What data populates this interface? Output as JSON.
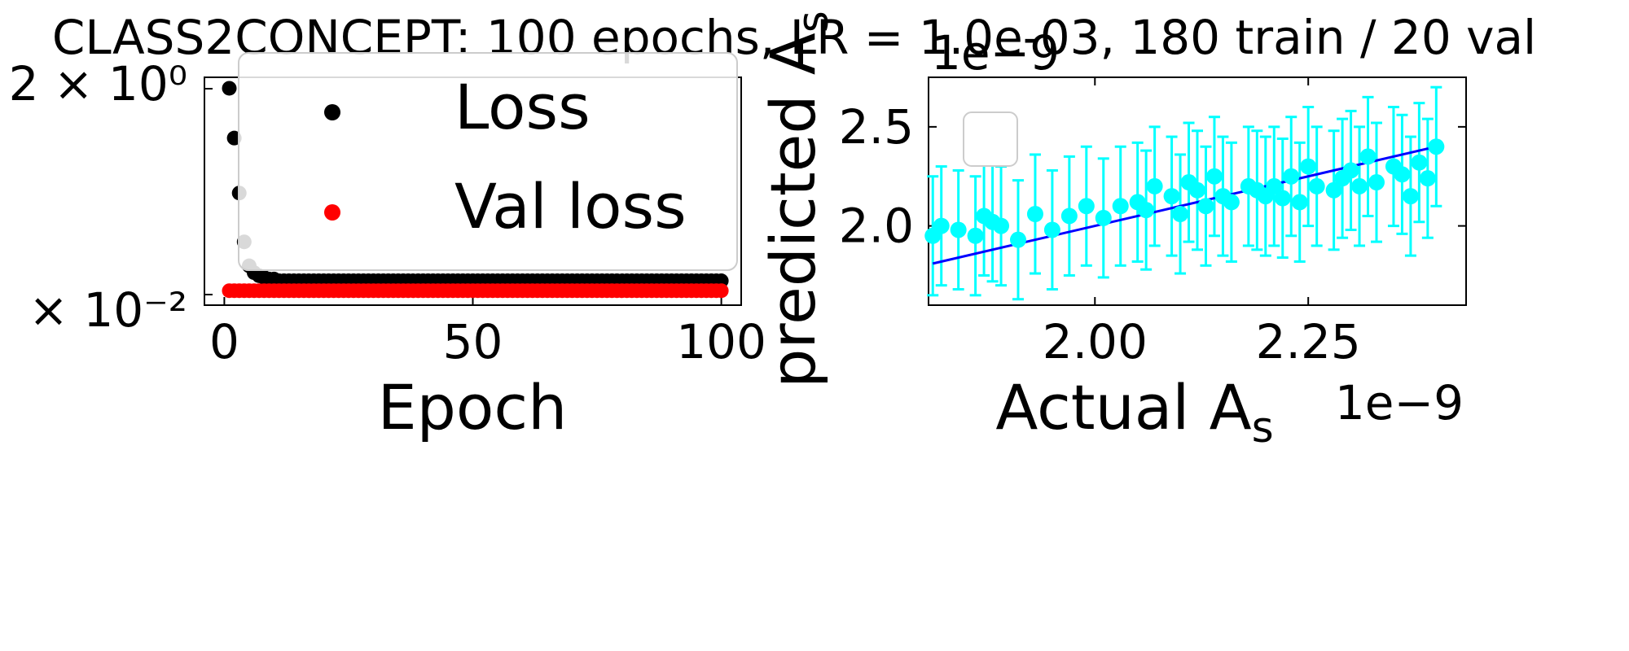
{
  "figure": {
    "suptitle": "CLASS2CONCEPT: 100 epochs, LR = 1.0e-03, 180 train / 20 val"
  },
  "chart_data": [
    {
      "type": "scatter",
      "title": "",
      "xlabel": "Epoch",
      "ylabel": "",
      "yscale": "log",
      "xlim": [
        -4,
        104
      ],
      "xticks": [
        "0",
        "50",
        "100"
      ],
      "yticks": [
        "2 × 10⁰",
        "× 10⁻²"
      ],
      "legend": {
        "position": "top-right",
        "entries": [
          "Loss",
          "Val loss"
        ]
      },
      "series": [
        {
          "name": "Loss",
          "color": "#000000",
          "x": [
            1,
            2,
            3,
            4,
            5,
            6,
            7,
            8,
            9,
            10,
            11,
            12,
            13,
            14,
            15,
            16,
            17,
            18,
            19,
            20,
            21,
            22,
            23,
            24,
            25,
            26,
            27,
            28,
            29,
            30,
            31,
            32,
            33,
            34,
            35,
            36,
            37,
            38,
            39,
            40,
            41,
            42,
            43,
            44,
            45,
            46,
            47,
            48,
            49,
            50,
            51,
            52,
            53,
            54,
            55,
            56,
            57,
            58,
            59,
            60,
            61,
            62,
            63,
            64,
            65,
            66,
            67,
            68,
            69,
            70,
            71,
            72,
            73,
            74,
            75,
            76,
            77,
            78,
            79,
            80,
            81,
            82,
            83,
            84,
            85,
            86,
            87,
            88,
            89,
            90,
            91,
            92,
            93,
            94,
            95,
            96,
            97,
            98,
            99,
            100
          ],
          "y": [
            1.9,
            0.62,
            0.18,
            0.06,
            0.035,
            0.03,
            0.028,
            0.027,
            0.026,
            0.026,
            0.025,
            0.025,
            0.025,
            0.025,
            0.025,
            0.025,
            0.025,
            0.025,
            0.025,
            0.025,
            0.025,
            0.025,
            0.025,
            0.025,
            0.025,
            0.025,
            0.025,
            0.025,
            0.025,
            0.025,
            0.025,
            0.025,
            0.025,
            0.025,
            0.025,
            0.025,
            0.025,
            0.025,
            0.025,
            0.025,
            0.025,
            0.025,
            0.025,
            0.025,
            0.025,
            0.025,
            0.025,
            0.025,
            0.025,
            0.025,
            0.025,
            0.025,
            0.025,
            0.025,
            0.025,
            0.025,
            0.025,
            0.025,
            0.025,
            0.025,
            0.025,
            0.025,
            0.025,
            0.025,
            0.025,
            0.025,
            0.025,
            0.025,
            0.025,
            0.025,
            0.025,
            0.025,
            0.025,
            0.025,
            0.025,
            0.025,
            0.025,
            0.025,
            0.025,
            0.025,
            0.025,
            0.025,
            0.025,
            0.025,
            0.025,
            0.025,
            0.025,
            0.025,
            0.025,
            0.025,
            0.025,
            0.025,
            0.025,
            0.025,
            0.025,
            0.025,
            0.025,
            0.025,
            0.025,
            0.025
          ]
        },
        {
          "name": "Val loss",
          "color": "#ff0000",
          "x": [
            1,
            2,
            3,
            4,
            5,
            6,
            7,
            8,
            9,
            10,
            11,
            12,
            13,
            14,
            15,
            16,
            17,
            18,
            19,
            20,
            21,
            22,
            23,
            24,
            25,
            26,
            27,
            28,
            29,
            30,
            31,
            32,
            33,
            34,
            35,
            36,
            37,
            38,
            39,
            40,
            41,
            42,
            43,
            44,
            45,
            46,
            47,
            48,
            49,
            50,
            51,
            52,
            53,
            54,
            55,
            56,
            57,
            58,
            59,
            60,
            61,
            62,
            63,
            64,
            65,
            66,
            67,
            68,
            69,
            70,
            71,
            72,
            73,
            74,
            75,
            76,
            77,
            78,
            79,
            80,
            81,
            82,
            83,
            84,
            85,
            86,
            87,
            88,
            89,
            90,
            91,
            92,
            93,
            94,
            95,
            96,
            97,
            98,
            99,
            100
          ],
          "y": [
            0.02,
            0.02,
            0.02,
            0.02,
            0.02,
            0.02,
            0.02,
            0.02,
            0.02,
            0.02,
            0.02,
            0.02,
            0.02,
            0.02,
            0.02,
            0.02,
            0.02,
            0.02,
            0.02,
            0.02,
            0.02,
            0.02,
            0.02,
            0.02,
            0.02,
            0.02,
            0.02,
            0.02,
            0.02,
            0.02,
            0.02,
            0.02,
            0.02,
            0.02,
            0.02,
            0.02,
            0.02,
            0.02,
            0.02,
            0.02,
            0.02,
            0.02,
            0.02,
            0.02,
            0.02,
            0.02,
            0.02,
            0.02,
            0.02,
            0.02,
            0.02,
            0.02,
            0.02,
            0.02,
            0.02,
            0.02,
            0.02,
            0.02,
            0.02,
            0.02,
            0.02,
            0.02,
            0.02,
            0.02,
            0.02,
            0.02,
            0.02,
            0.02,
            0.02,
            0.02,
            0.02,
            0.02,
            0.02,
            0.02,
            0.02,
            0.02,
            0.02,
            0.02,
            0.02,
            0.02,
            0.02,
            0.02,
            0.02,
            0.02,
            0.02,
            0.02,
            0.02,
            0.02,
            0.02,
            0.02,
            0.02,
            0.02,
            0.02,
            0.02,
            0.02,
            0.02,
            0.02,
            0.02,
            0.02,
            0.02
          ]
        }
      ]
    },
    {
      "type": "scatter",
      "title": "",
      "xlabel": "Actual  A_s",
      "ylabel": "predicted  A_s",
      "x_offset_label": "1e−9",
      "y_offset_label": "1e−9",
      "xlim": [
        1.805,
        2.435
      ],
      "ylim": [
        1.6,
        2.75
      ],
      "xticks": [
        "2.00",
        "2.25"
      ],
      "yticks": [
        "2.0",
        "2.5"
      ],
      "legend": {
        "position": "top-left",
        "entries": []
      },
      "fit_line": {
        "color": "#0000ff",
        "x": [
          1.81,
          2.4
        ],
        "y": [
          1.81,
          2.4
        ]
      },
      "series": [
        {
          "name": "",
          "color": "#00ffff",
          "error": 0.3,
          "x": [
            1.81,
            1.82,
            1.84,
            1.86,
            1.87,
            1.88,
            1.89,
            1.91,
            1.93,
            1.95,
            1.97,
            1.99,
            2.01,
            2.03,
            2.05,
            2.06,
            2.07,
            2.09,
            2.1,
            2.11,
            2.12,
            2.13,
            2.14,
            2.15,
            2.16,
            2.18,
            2.19,
            2.2,
            2.21,
            2.22,
            2.23,
            2.24,
            2.25,
            2.26,
            2.28,
            2.29,
            2.3,
            2.31,
            2.32,
            2.33,
            2.35,
            2.36,
            2.37,
            2.38,
            2.39,
            2.4
          ],
          "y": [
            1.95,
            2.0,
            1.98,
            1.95,
            2.05,
            2.02,
            2.0,
            1.93,
            2.06,
            1.98,
            2.05,
            2.1,
            2.04,
            2.1,
            2.12,
            2.08,
            2.2,
            2.15,
            2.06,
            2.22,
            2.18,
            2.1,
            2.25,
            2.15,
            2.12,
            2.2,
            2.18,
            2.15,
            2.2,
            2.14,
            2.25,
            2.12,
            2.3,
            2.2,
            2.18,
            2.24,
            2.28,
            2.2,
            2.35,
            2.22,
            2.3,
            2.26,
            2.15,
            2.32,
            2.24,
            2.4
          ]
        }
      ]
    }
  ]
}
